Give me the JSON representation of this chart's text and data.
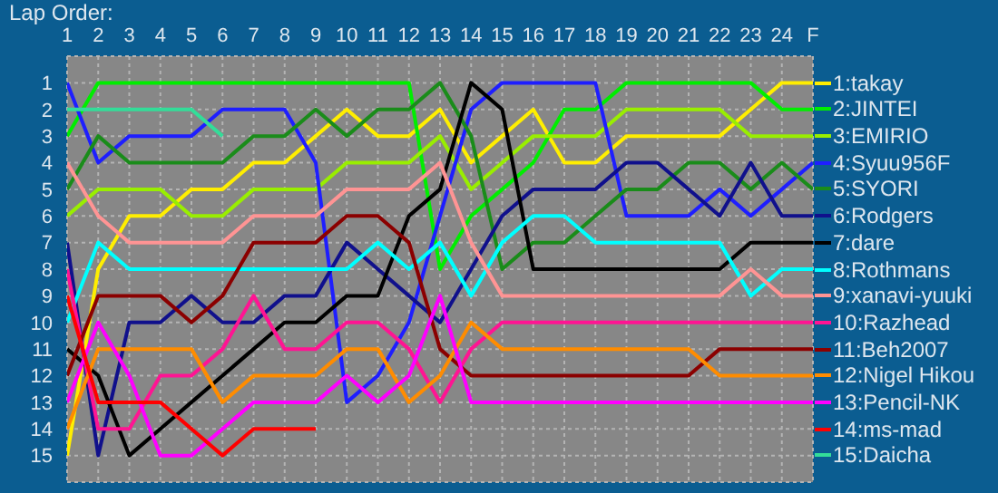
{
  "chart_data": {
    "type": "line",
    "title": "Lap Order:",
    "x": [
      1,
      2,
      3,
      4,
      5,
      6,
      7,
      8,
      9,
      10,
      11,
      12,
      13,
      14,
      15,
      16,
      17,
      18,
      19,
      20,
      21,
      22,
      23,
      24,
      25
    ],
    "xlim": [
      1,
      25
    ],
    "xticks": [
      1,
      2,
      3,
      4,
      5,
      6,
      7,
      8,
      9,
      10,
      11,
      12,
      13,
      14,
      15,
      16,
      17,
      18,
      19,
      20,
      21,
      22,
      23,
      24,
      {
        "value": 25,
        "label": "F"
      }
    ],
    "ylim": [
      16,
      0
    ],
    "yticks": [
      1,
      2,
      3,
      4,
      5,
      6,
      7,
      8,
      9,
      10,
      11,
      12,
      13,
      14,
      15
    ],
    "grid": true,
    "legend": "right",
    "series": [
      {
        "name": "1:takay",
        "color": "#ffee00",
        "values": [
          15,
          8,
          6,
          6,
          5,
          5,
          4,
          4,
          3,
          2,
          3,
          3,
          2,
          4,
          3,
          2,
          4,
          4,
          3,
          3,
          3,
          3,
          2,
          1,
          1
        ]
      },
      {
        "name": "2:JINTEI",
        "color": "#00ee00",
        "values": [
          3,
          1,
          1,
          1,
          1,
          1,
          1,
          1,
          1,
          1,
          1,
          1,
          8,
          6,
          5,
          4,
          2,
          2,
          1,
          1,
          1,
          1,
          1,
          2,
          2
        ]
      },
      {
        "name": "3:EMIRIO",
        "color": "#99ee00",
        "values": [
          6,
          5,
          5,
          5,
          6,
          6,
          5,
          5,
          5,
          4,
          4,
          4,
          3,
          5,
          4,
          3,
          3,
          3,
          2,
          2,
          2,
          2,
          3,
          3,
          3
        ]
      },
      {
        "name": "4:Syuu956F",
        "color": "#1e1eff",
        "values": [
          1,
          4,
          3,
          3,
          3,
          2,
          2,
          2,
          4,
          13,
          12,
          10,
          6,
          2,
          1,
          1,
          1,
          1,
          6,
          6,
          6,
          5,
          6,
          5,
          4
        ]
      },
      {
        "name": "5:SYORI",
        "color": "#1a8c1a",
        "values": [
          5,
          3,
          4,
          4,
          4,
          4,
          3,
          3,
          2,
          3,
          2,
          2,
          1,
          3,
          8,
          7,
          7,
          6,
          5,
          5,
          4,
          4,
          5,
          4,
          5
        ]
      },
      {
        "name": "6:Rodgers",
        "color": "#10108c",
        "values": [
          7,
          15,
          10,
          10,
          9,
          10,
          10,
          9,
          9,
          7,
          8,
          9,
          10,
          8,
          6,
          5,
          5,
          5,
          4,
          4,
          5,
          6,
          4,
          6,
          6
        ]
      },
      {
        "name": "7:dare",
        "color": "#000000",
        "values": [
          11,
          12,
          15,
          14,
          13,
          12,
          11,
          10,
          10,
          9,
          9,
          6,
          5,
          1,
          2,
          8,
          8,
          8,
          8,
          8,
          8,
          8,
          7,
          7,
          7
        ]
      },
      {
        "name": "8:Rothmans",
        "color": "#00ffff",
        "values": [
          10,
          7,
          8,
          8,
          8,
          8,
          8,
          8,
          8,
          8,
          7,
          8,
          7,
          9,
          7,
          6,
          6,
          7,
          7,
          7,
          7,
          7,
          9,
          8,
          8
        ]
      },
      {
        "name": "9:xanavi-yuuki",
        "color": "#ff9494",
        "values": [
          4,
          6,
          7,
          7,
          7,
          7,
          6,
          6,
          6,
          5,
          5,
          5,
          4,
          7,
          9,
          9,
          9,
          9,
          9,
          9,
          9,
          9,
          8,
          9,
          9
        ]
      },
      {
        "name": "10:Razhead",
        "color": "#ff1493",
        "values": [
          8,
          14,
          14,
          12,
          12,
          11,
          9,
          11,
          11,
          10,
          10,
          11,
          13,
          11,
          10,
          10,
          10,
          10,
          10,
          10,
          10,
          10,
          10,
          10,
          10
        ]
      },
      {
        "name": "11:Beh2007",
        "color": "#8b0000",
        "values": [
          12,
          9,
          9,
          9,
          10,
          9,
          7,
          7,
          7,
          6,
          6,
          7,
          11,
          12,
          12,
          12,
          12,
          12,
          12,
          12,
          12,
          11,
          11,
          11,
          11
        ]
      },
      {
        "name": "12:Nigel Hikou",
        "color": "#ff8c00",
        "values": [
          14,
          11,
          11,
          11,
          11,
          13,
          12,
          12,
          12,
          11,
          11,
          13,
          12,
          10,
          11,
          11,
          11,
          11,
          11,
          11,
          11,
          12,
          12,
          12,
          12
        ]
      },
      {
        "name": "13:Pencil-NK",
        "color": "#ff00ff",
        "values": [
          13,
          10,
          12,
          15,
          15,
          14,
          13,
          13,
          13,
          12,
          13,
          12,
          9,
          13,
          13,
          13,
          13,
          13,
          13,
          13,
          13,
          13,
          13,
          13,
          13
        ]
      },
      {
        "name": "14:ms-mad",
        "color": "#ff0000",
        "values": [
          9,
          13,
          13,
          13,
          14,
          15,
          14,
          14,
          14,
          null,
          null,
          null,
          null,
          null,
          null,
          null,
          null,
          null,
          null,
          null,
          null,
          null,
          null,
          null,
          null
        ]
      },
      {
        "name": "15:Daicha",
        "color": "#33dd99",
        "values": [
          2,
          2,
          2,
          2,
          2,
          3,
          null,
          null,
          null,
          null,
          null,
          null,
          null,
          null,
          null,
          null,
          null,
          null,
          null,
          null,
          null,
          null,
          null,
          null,
          null
        ]
      }
    ]
  }
}
